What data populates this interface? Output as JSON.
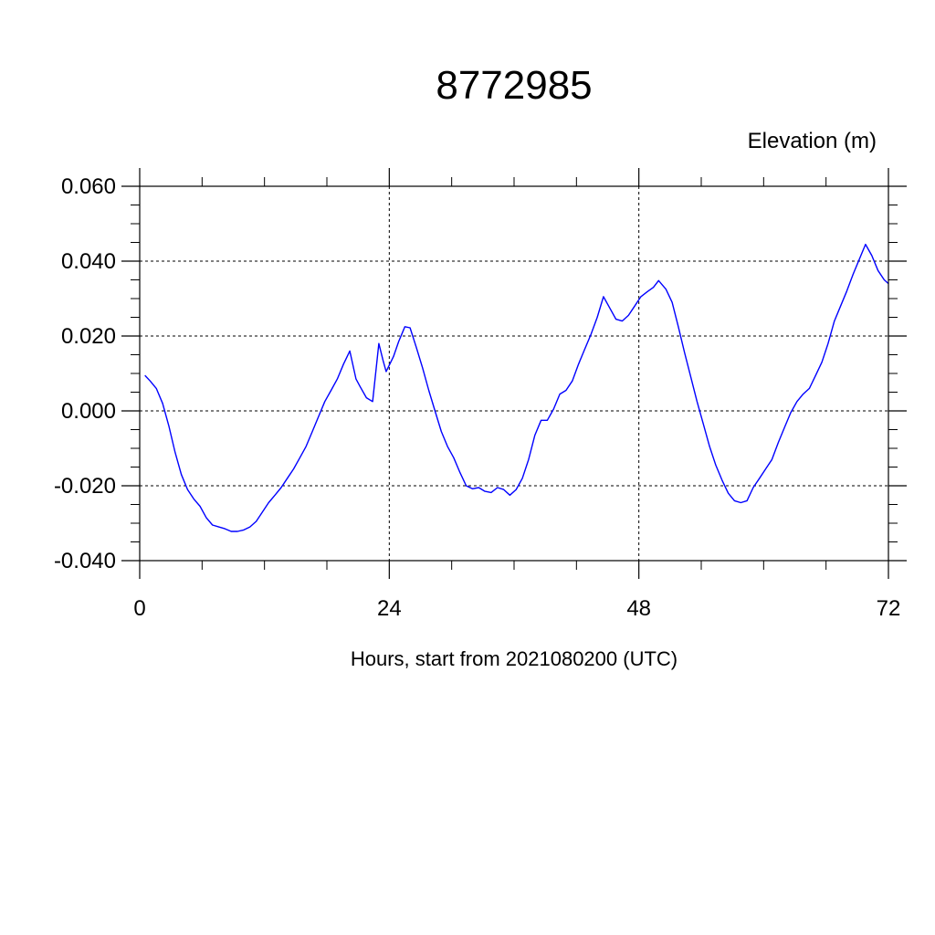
{
  "chart_data": {
    "type": "line",
    "title": "8772985",
    "ylabel": "Elevation (m)",
    "xlabel": "Hours, start from 2021080200 (UTC)",
    "xlim": [
      0,
      72
    ],
    "ylim": [
      -0.04,
      0.06
    ],
    "xticks": [
      0,
      24,
      48,
      72
    ],
    "xtick_labels": [
      "0",
      "24",
      "48",
      "72"
    ],
    "yticks": [
      -0.04,
      -0.02,
      0.0,
      0.02,
      0.04,
      0.06
    ],
    "ytick_labels": [
      "-0.040",
      "-0.020",
      "0.000",
      "0.020",
      "0.040",
      "0.060"
    ],
    "grid": true,
    "series": [
      {
        "color": "#0000ff",
        "x": [
          0.5,
          1.0,
          1.6,
          2.2,
          2.8,
          3.4,
          4.0,
          4.6,
          5.2,
          5.8,
          6.4,
          7.0,
          7.6,
          8.2,
          8.8,
          9.4,
          10.0,
          10.6,
          11.2,
          11.8,
          12.4,
          13.0,
          13.6,
          14.2,
          14.8,
          15.4,
          16.0,
          16.6,
          17.2,
          17.8,
          18.4,
          19.0,
          19.6,
          20.2,
          20.8,
          21.2,
          21.8,
          22.4,
          23.0,
          23.4,
          23.7,
          24.4,
          24.9,
          25.5,
          26.0,
          26.6,
          27.2,
          27.8,
          28.4,
          29.0,
          29.6,
          30.2,
          30.8,
          31.4,
          32.0,
          32.6,
          33.2,
          33.8,
          34.4,
          35.0,
          35.6,
          36.2,
          36.8,
          37.4,
          38.0,
          38.6,
          39.2,
          39.8,
          40.4,
          41.0,
          41.6,
          42.2,
          42.8,
          43.4,
          44.0,
          44.6,
          45.2,
          45.8,
          46.4,
          47.0,
          47.6,
          48.2,
          48.8,
          49.4,
          49.9,
          50.6,
          51.2,
          51.8,
          52.4,
          53.0,
          53.6,
          54.2,
          54.8,
          55.4,
          56.0,
          56.6,
          57.2,
          57.8,
          58.4,
          59.0,
          59.6,
          60.2,
          60.8,
          61.4,
          62.0,
          62.6,
          63.2,
          63.8,
          64.4,
          65.0,
          65.6,
          66.2,
          66.8,
          67.4,
          68.0,
          68.6,
          69.2,
          69.8,
          70.4,
          71.0,
          71.6,
          72.0
        ],
        "y": [
          0.0095,
          0.008,
          0.006,
          0.002,
          -0.004,
          -0.011,
          -0.017,
          -0.021,
          -0.0235,
          -0.0255,
          -0.0285,
          -0.0305,
          -0.031,
          -0.0315,
          -0.0322,
          -0.0322,
          -0.0318,
          -0.031,
          -0.0295,
          -0.027,
          -0.0245,
          -0.0225,
          -0.0205,
          -0.018,
          -0.0155,
          -0.0125,
          -0.0095,
          -0.0055,
          -0.0015,
          0.0025,
          0.0055,
          0.0085,
          0.0125,
          0.016,
          0.0085,
          0.0065,
          0.0035,
          0.0025,
          0.018,
          0.0135,
          0.0105,
          0.0145,
          0.0185,
          0.0225,
          0.0222,
          0.017,
          0.0115,
          0.0055,
          0.0,
          -0.0055,
          -0.0095,
          -0.0125,
          -0.0165,
          -0.02,
          -0.0208,
          -0.0205,
          -0.0215,
          -0.0218,
          -0.0205,
          -0.021,
          -0.0225,
          -0.021,
          -0.018,
          -0.013,
          -0.0065,
          -0.0025,
          -0.0025,
          0.0005,
          0.0045,
          0.0055,
          0.008,
          0.0125,
          0.0165,
          0.0205,
          0.025,
          0.0305,
          0.0275,
          0.0245,
          0.024,
          0.0255,
          0.028,
          0.0305,
          0.0318,
          0.033,
          0.0348,
          0.0325,
          0.029,
          0.0225,
          0.0155,
          0.009,
          0.0025,
          -0.0035,
          -0.0095,
          -0.0145,
          -0.0185,
          -0.022,
          -0.024,
          -0.0245,
          -0.024,
          -0.0205,
          -0.018,
          -0.0155,
          -0.013,
          -0.0085,
          -0.0045,
          -0.0005,
          0.0025,
          0.0045,
          0.006,
          0.0095,
          0.013,
          0.018,
          0.024,
          0.028,
          0.032,
          0.0365,
          0.0405,
          0.0445,
          0.0415,
          0.0375,
          0.035,
          0.034
        ]
      }
    ]
  }
}
